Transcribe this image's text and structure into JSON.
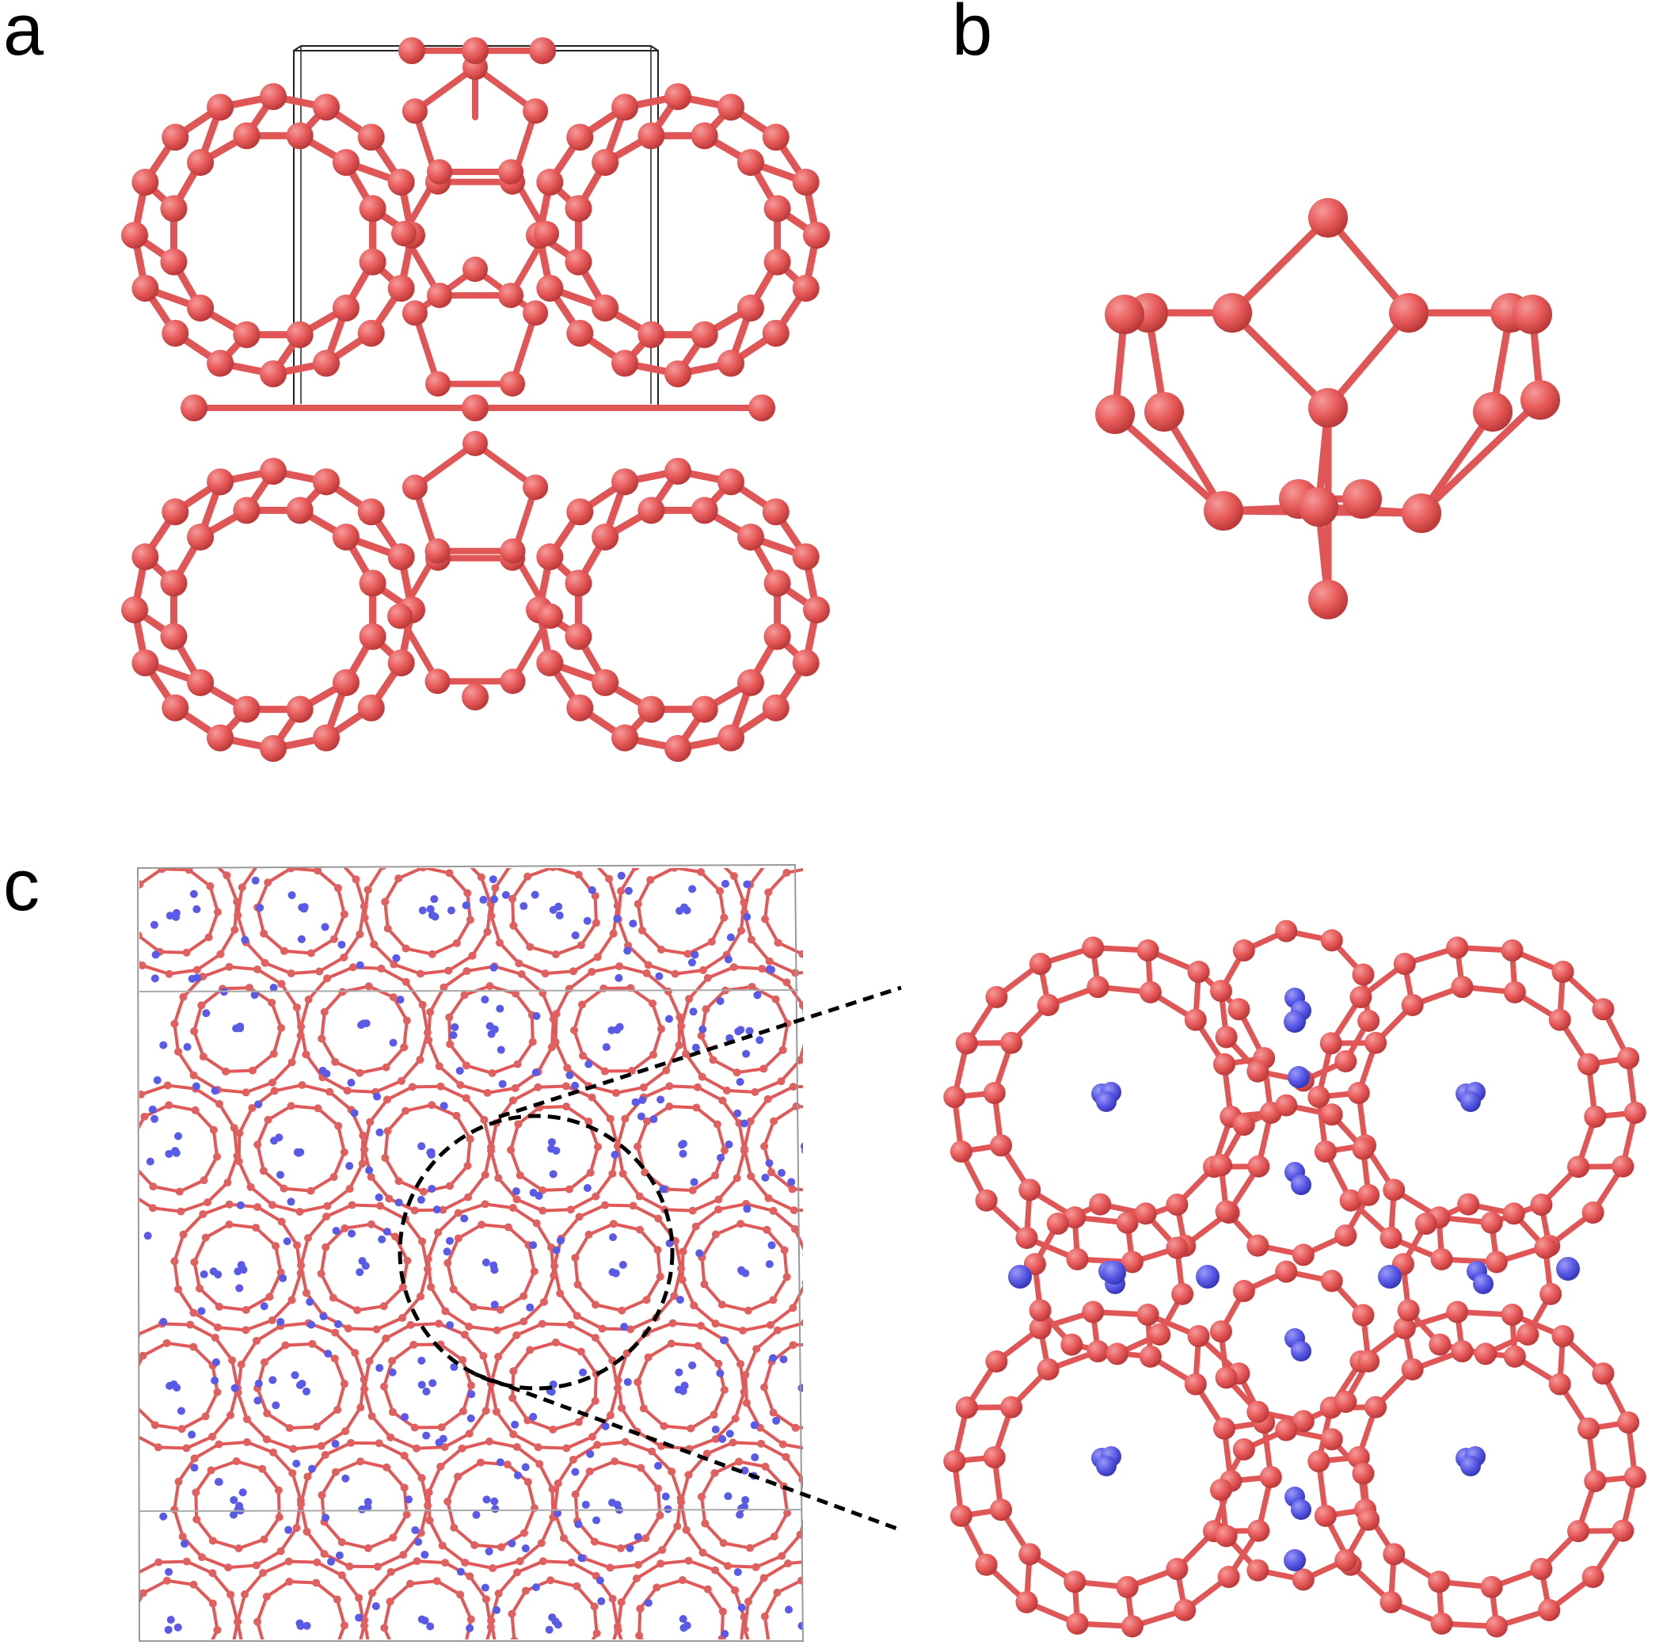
{
  "figure": {
    "panels": [
      {
        "id": "a",
        "label": "a"
      },
      {
        "id": "b",
        "label": "b"
      },
      {
        "id": "c",
        "label": "c"
      }
    ],
    "colors": {
      "framework_atom": "#e85a5a",
      "framework_bond": "#e05555",
      "guest_atom": "#5a5ae8",
      "cell_box": "#222222",
      "sim_box": "#999999",
      "callout": "#000000"
    }
  }
}
